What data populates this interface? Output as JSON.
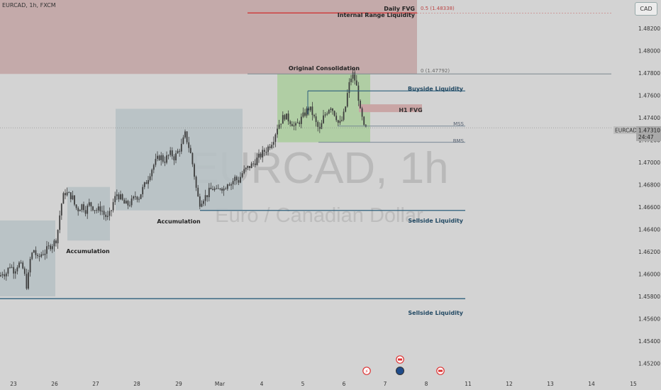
{
  "header": {
    "symbol_line": "EURCAD, 1h, FXCM",
    "currency_button": "CAD"
  },
  "watermark": {
    "symbol": "EURCAD, 1h",
    "description": "Euro / Canadian Dollar"
  },
  "price_badge": {
    "symbol": "EURCAD",
    "price": "1.47310",
    "countdown": "24:47"
  },
  "colors": {
    "background": "#d3d3d3",
    "candle": "#3d3d3d",
    "daily_fvg": "#c4aaaa",
    "daily_fvg_line": "#cf2b2b",
    "consolidation_zone": "#a9cc9b",
    "accumulation_zone": "#b7c1c4",
    "h1_fvg": "#c9a5a5",
    "liquidity_line": "#2e5f7c",
    "annotation_text": "#234a64"
  },
  "chart_data": {
    "type": "candlestick",
    "symbol": "EURCAD",
    "timeframe": "1h",
    "y_ticks": [
      "1.48200",
      "1.48000",
      "1.47800",
      "1.47600",
      "1.47400",
      "1.47200",
      "1.47000",
      "1.46800",
      "1.46600",
      "1.46400",
      "1.46200",
      "1.46000",
      "1.45800",
      "1.45600",
      "1.45400",
      "1.45200"
    ],
    "x_ticks": [
      "23",
      "26",
      "27",
      "28",
      "29",
      "Mar",
      "4",
      "5",
      "6",
      "7",
      "8",
      "11",
      "12",
      "13",
      "14",
      "15"
    ],
    "ylim": [
      1.4517,
      1.484
    ],
    "close_path": [
      [
        0,
        1.4598
      ],
      [
        4,
        1.4602
      ],
      [
        8,
        1.46
      ],
      [
        14,
        1.4608
      ],
      [
        20,
        1.4603
      ],
      [
        26,
        1.461
      ],
      [
        33,
        1.4604
      ],
      [
        38,
        1.4588
      ],
      [
        43,
        1.4615
      ],
      [
        48,
        1.4622
      ],
      [
        53,
        1.4613
      ],
      [
        58,
        1.4618
      ],
      [
        64,
        1.462
      ],
      [
        70,
        1.4625
      ],
      [
        76,
        1.4628
      ],
      [
        80,
        1.4632
      ],
      [
        84,
        1.4652
      ],
      [
        88,
        1.4668
      ],
      [
        92,
        1.4673
      ],
      [
        97,
        1.4671
      ],
      [
        102,
        1.4669
      ],
      [
        106,
        1.466
      ],
      [
        110,
        1.4658
      ],
      [
        116,
        1.4662
      ],
      [
        121,
        1.4657
      ],
      [
        126,
        1.4663
      ],
      [
        131,
        1.466
      ],
      [
        137,
        1.4657
      ],
      [
        142,
        1.4659
      ],
      [
        147,
        1.4653
      ],
      [
        152,
        1.465
      ],
      [
        156,
        1.4655
      ],
      [
        160,
        1.4665
      ],
      [
        165,
        1.4672
      ],
      [
        170,
        1.4668
      ],
      [
        175,
        1.4663
      ],
      [
        180,
        1.4662
      ],
      [
        186,
        1.4665
      ],
      [
        191,
        1.467
      ],
      [
        196,
        1.4669
      ],
      [
        201,
        1.4676
      ],
      [
        206,
        1.4682
      ],
      [
        211,
        1.469
      ],
      [
        216,
        1.4697
      ],
      [
        221,
        1.4702
      ],
      [
        226,
        1.4706
      ],
      [
        231,
        1.4701
      ],
      [
        236,
        1.4705
      ],
      [
        241,
        1.4708
      ],
      [
        246,
        1.4704
      ],
      [
        251,
        1.471
      ],
      [
        256,
        1.4715
      ],
      [
        261,
        1.4725
      ],
      [
        265,
        1.4717
      ],
      [
        269,
        1.4707
      ],
      [
        273,
        1.4693
      ],
      [
        277,
        1.4675
      ],
      [
        281,
        1.4663
      ],
      [
        286,
        1.4668
      ],
      [
        291,
        1.467
      ],
      [
        296,
        1.4675
      ],
      [
        301,
        1.4677
      ],
      [
        306,
        1.4673
      ],
      [
        311,
        1.4679
      ],
      [
        316,
        1.4676
      ],
      [
        321,
        1.4683
      ],
      [
        326,
        1.4681
      ],
      [
        331,
        1.4686
      ],
      [
        336,
        1.4683
      ],
      [
        341,
        1.469
      ],
      [
        346,
        1.4693
      ],
      [
        351,
        1.4696
      ],
      [
        356,
        1.4698
      ],
      [
        361,
        1.4702
      ],
      [
        366,
        1.4705
      ],
      [
        371,
        1.4709
      ],
      [
        376,
        1.4712
      ],
      [
        381,
        1.4716
      ],
      [
        386,
        1.4722
      ],
      [
        391,
        1.4732
      ],
      [
        396,
        1.4737
      ],
      [
        401,
        1.4742
      ],
      [
        406,
        1.4739
      ],
      [
        411,
        1.4736
      ],
      [
        416,
        1.4731
      ],
      [
        421,
        1.4736
      ],
      [
        426,
        1.474
      ],
      [
        431,
        1.4745
      ],
      [
        436,
        1.4749
      ],
      [
        441,
        1.4743
      ],
      [
        446,
        1.4734
      ],
      [
        451,
        1.4728
      ],
      [
        456,
        1.474
      ],
      [
        461,
        1.4746
      ],
      [
        466,
        1.4751
      ],
      [
        470,
        1.4746
      ],
      [
        474,
        1.4741
      ],
      [
        478,
        1.4733
      ],
      [
        482,
        1.4738
      ],
      [
        486,
        1.4745
      ],
      [
        490,
        1.4762
      ],
      [
        494,
        1.4775
      ],
      [
        498,
        1.4779
      ],
      [
        502,
        1.477
      ],
      [
        505,
        1.476
      ],
      [
        508,
        1.4745
      ],
      [
        511,
        1.4738
      ],
      [
        514,
        1.4728
      ],
      [
        517,
        1.4731
      ]
    ],
    "consolidation": {
      "label": "Original Consolidation",
      "top": 1.47792,
      "bottom": 1.4718
    },
    "accumulation_zones": [
      {
        "top": 1.4648,
        "bottom": 1.458
      },
      {
        "top": 1.4678,
        "bottom": 1.463,
        "label": "Accumulation"
      },
      {
        "top": 1.4748,
        "bottom": 1.4657,
        "label": "Accumulation"
      }
    ],
    "daily_fvg": {
      "label": "Daily FVG",
      "top": 1.484,
      "bottom": 1.47792
    },
    "fib_levels": [
      {
        "label": "0.5 (1.48338)",
        "value": 1.48338
      },
      {
        "label": "0 (1.47792)",
        "value": 1.47792
      }
    ],
    "h1_fvg": {
      "label": "H1 FVG",
      "top": 1.4752,
      "bottom": 1.4745
    },
    "levels": [
      {
        "label": "Internal Range Liquidity",
        "value": 1.48338
      },
      {
        "label": "Original Consolidation",
        "value": 1.47792
      },
      {
        "label": "Buyside Liquidity",
        "value": 1.4764
      },
      {
        "label": "MSS",
        "value": 1.47325
      },
      {
        "label": "BMS",
        "value": 1.4718
      },
      {
        "label": "Sellside Liquidity",
        "value": 1.4657
      },
      {
        "label": "Sellside Liquidity",
        "value": 1.4578
      }
    ],
    "current_price": 1.4731,
    "event_markers": [
      "⚡",
      "🍁",
      "🇪🇺",
      "🍁"
    ]
  }
}
